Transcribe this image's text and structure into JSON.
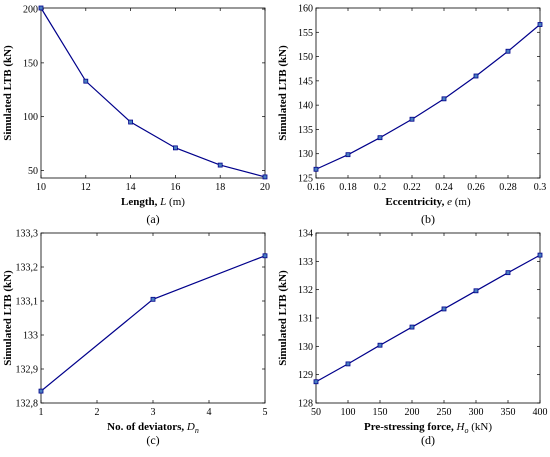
{
  "chart_data": [
    {
      "panel": "(a)",
      "type": "line",
      "xlabel": "Length,",
      "xvar": "L",
      "xunit": "(m)",
      "ylabel": "Simulated LTB (kN)",
      "xlim": [
        10,
        20
      ],
      "ylim": [
        43,
        201
      ],
      "xticks": [
        10,
        12,
        14,
        16,
        18,
        20
      ],
      "xtick_labels": [
        "10",
        "12",
        "14",
        "16",
        "18",
        "20"
      ],
      "yticks": [
        50,
        100,
        150,
        200
      ],
      "ytick_labels": [
        "50",
        "100",
        "150",
        "200"
      ],
      "x": [
        10,
        12,
        14,
        16,
        18,
        20
      ],
      "series": [
        {
          "values": [
            201,
            133,
            95,
            71,
            55,
            44
          ]
        }
      ],
      "line_color": "#00008b",
      "grid": false
    },
    {
      "panel": "(b)",
      "type": "line",
      "xlabel": "Eccentricity,",
      "xvar": "e",
      "xunit": "(m)",
      "ylabel": "Simulated LTB (kN)",
      "xlim": [
        0.16,
        0.3
      ],
      "ylim": [
        125,
        160
      ],
      "xticks": [
        0.16,
        0.18,
        0.2,
        0.22,
        0.24,
        0.26,
        0.28,
        0.3
      ],
      "xtick_labels": [
        "0.16",
        "0.18",
        "0.2",
        "0.22",
        "0.24",
        "0.26",
        "0.28",
        "0.3"
      ],
      "yticks": [
        125,
        130,
        135,
        140,
        145,
        150,
        155,
        160
      ],
      "ytick_labels": [
        "125",
        "130",
        "135",
        "140",
        "145",
        "150",
        "155",
        "160"
      ],
      "x": [
        0.16,
        0.18,
        0.2,
        0.22,
        0.24,
        0.26,
        0.28,
        0.3
      ],
      "series": [
        {
          "values": [
            126.8,
            129.8,
            133.3,
            137.1,
            141.3,
            146.0,
            151.1,
            156.6
          ]
        }
      ],
      "line_color": "#00008b",
      "grid": false
    },
    {
      "panel": "(c)",
      "type": "line",
      "xlabel": "No. of deviators,",
      "xvar": "D",
      "xsub": "n",
      "xunit": "",
      "ylabel": "Simulated LTB (kN)",
      "xlim": [
        1,
        5
      ],
      "ylim": [
        132.8,
        133.3
      ],
      "xticks": [
        1,
        2,
        3,
        4,
        5
      ],
      "xtick_labels": [
        "1",
        "2",
        "3",
        "4",
        "5"
      ],
      "yticks": [
        132.8,
        132.9,
        133.0,
        133.1,
        133.2,
        133.3
      ],
      "ytick_labels": [
        "132,8",
        "132,9",
        "133",
        "133,1",
        "133,2",
        "133,3"
      ],
      "x": [
        1,
        3,
        5
      ],
      "series": [
        {
          "values": [
            132.835,
            133.105,
            133.233
          ]
        }
      ],
      "line_color": "#00008b",
      "grid": false
    },
    {
      "panel": "(d)",
      "type": "line",
      "xlabel": "Pre-stressing force,",
      "xvar": "H",
      "xsub": "o",
      "xunit": "(kN)",
      "ylabel": "Simulated LTB (kN)",
      "xlim": [
        50,
        400
      ],
      "ylim": [
        128,
        134
      ],
      "xticks": [
        50,
        100,
        150,
        200,
        250,
        300,
        350,
        400
      ],
      "xtick_labels": [
        "50",
        "100",
        "150",
        "200",
        "250",
        "300",
        "350",
        "400"
      ],
      "yticks": [
        128,
        129,
        130,
        131,
        132,
        133,
        134
      ],
      "ytick_labels": [
        "128",
        "129",
        "130",
        "131",
        "132",
        "133",
        "134"
      ],
      "x": [
        50,
        100,
        150,
        200,
        250,
        300,
        350,
        400
      ],
      "series": [
        {
          "values": [
            128.75,
            129.38,
            130.04,
            130.68,
            131.32,
            131.96,
            132.6,
            133.22
          ]
        }
      ],
      "line_color": "#00008b",
      "grid": false
    }
  ]
}
